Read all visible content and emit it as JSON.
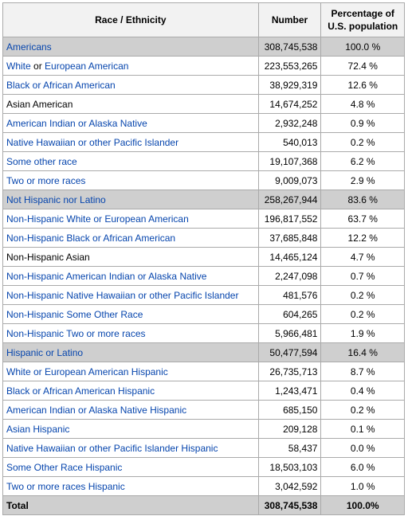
{
  "headers": {
    "race": "Race / Ethnicity",
    "number": "Number",
    "pct_line1": "Percentage of",
    "pct_line2": "U.S. population"
  },
  "rows": [
    {
      "name": "Americans",
      "number": "308,745,538",
      "pct": "100.0 %"
    },
    {
      "name_a": "White",
      "name_b": " or ",
      "name_c": "European American",
      "number": "223,553,265",
      "pct": "72.4 %"
    },
    {
      "name": "Black or African American",
      "number": "38,929,319",
      "pct": "12.6 %"
    },
    {
      "name": "Asian American",
      "number": "14,674,252",
      "pct": "4.8 %"
    },
    {
      "name": "American Indian or Alaska Native",
      "number": "2,932,248",
      "pct": "0.9 %"
    },
    {
      "name": "Native Hawaiian or other Pacific Islander",
      "number": "540,013",
      "pct": "0.2 %"
    },
    {
      "name": "Some other race",
      "number": "19,107,368",
      "pct": "6.2 %"
    },
    {
      "name": "Two or more races",
      "number": "9,009,073",
      "pct": "2.9 %"
    },
    {
      "name": "Not Hispanic nor Latino",
      "number": "258,267,944",
      "pct": "83.6 %"
    },
    {
      "name": "Non-Hispanic White or European American",
      "number": "196,817,552",
      "pct": "63.7 %"
    },
    {
      "name": "Non-Hispanic Black or African American",
      "number": "37,685,848",
      "pct": "12.2 %"
    },
    {
      "name": "Non-Hispanic Asian",
      "number": "14,465,124",
      "pct": "4.7 %"
    },
    {
      "name": "Non-Hispanic American Indian or Alaska Native",
      "number": "2,247,098",
      "pct": "0.7 %"
    },
    {
      "name": "Non-Hispanic Native Hawaiian or other Pacific Islander",
      "number": "481,576",
      "pct": "0.2 %"
    },
    {
      "name": "Non-Hispanic Some Other Race",
      "number": "604,265",
      "pct": "0.2 %"
    },
    {
      "name": "Non-Hispanic Two or more races",
      "number": "5,966,481",
      "pct": "1.9 %"
    },
    {
      "name": "Hispanic or Latino",
      "number": "50,477,594",
      "pct": "16.4 %"
    },
    {
      "name": "White or European American Hispanic",
      "number": "26,735,713",
      "pct": "8.7 %"
    },
    {
      "name": "Black or African American Hispanic",
      "number": "1,243,471",
      "pct": "0.4 %"
    },
    {
      "name": "American Indian or Alaska Native Hispanic",
      "number": "685,150",
      "pct": "0.2 %"
    },
    {
      "name": "Asian Hispanic",
      "number": "209,128",
      "pct": "0.1 %"
    },
    {
      "name": "Native Hawaiian or other Pacific Islander Hispanic",
      "number": "58,437",
      "pct": "0.0 %"
    },
    {
      "name": "Some Other Race Hispanic",
      "number": "18,503,103",
      "pct": "6.0 %"
    },
    {
      "name": "Two or more races Hispanic",
      "number": "3,042,592",
      "pct": "1.0 %"
    }
  ],
  "total": {
    "name": "Total",
    "number": "308,745,538",
    "pct": "100.0%"
  },
  "colors": {
    "link": "#0645ad",
    "group_bg": "#cfcfcf",
    "header_bg": "#f2f2f2",
    "border": "#aaaaaa"
  }
}
